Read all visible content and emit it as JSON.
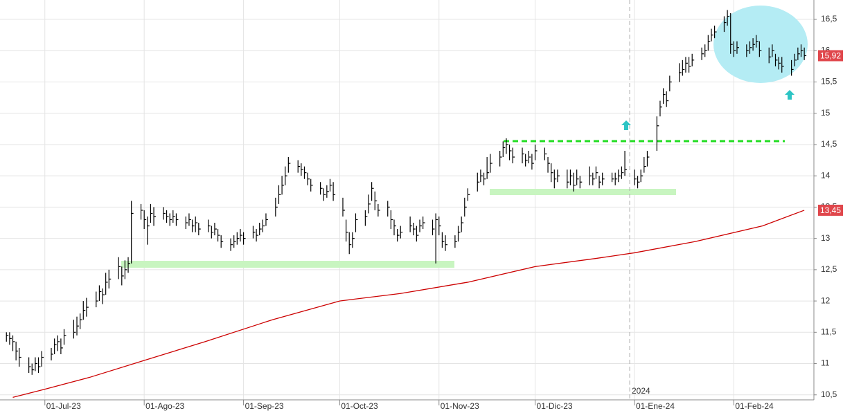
{
  "chart_data": {
    "type": "ohlc",
    "x": [
      "2023-06-19",
      "2023-06-20",
      "2023-06-21",
      "2023-06-22",
      "2023-06-23",
      "2023-06-26",
      "2023-06-27",
      "2023-06-28",
      "2023-06-29",
      "2023-06-30",
      "2023-07-03",
      "2023-07-04",
      "2023-07-05",
      "2023-07-06",
      "2023-07-07",
      "2023-07-10",
      "2023-07-11",
      "2023-07-12",
      "2023-07-13",
      "2023-07-14",
      "2023-07-17",
      "2023-07-18",
      "2023-07-19",
      "2023-07-20",
      "2023-07-21",
      "2023-07-24",
      "2023-07-25",
      "2023-07-26",
      "2023-07-27",
      "2023-07-28",
      "2023-07-31",
      "2023-08-01",
      "2023-08-02",
      "2023-08-03",
      "2023-08-04",
      "2023-08-07",
      "2023-08-08",
      "2023-08-09",
      "2023-08-10",
      "2023-08-11",
      "2023-08-14",
      "2023-08-15",
      "2023-08-16",
      "2023-08-17",
      "2023-08-18",
      "2023-08-21",
      "2023-08-22",
      "2023-08-23",
      "2023-08-24",
      "2023-08-25",
      "2023-08-28",
      "2023-08-29",
      "2023-08-30",
      "2023-08-31",
      "2023-09-01",
      "2023-09-04",
      "2023-09-05",
      "2023-09-06",
      "2023-09-07",
      "2023-09-08",
      "2023-09-11",
      "2023-09-12",
      "2023-09-13",
      "2023-09-14",
      "2023-09-15",
      "2023-09-18",
      "2023-09-19",
      "2023-09-20",
      "2023-09-21",
      "2023-09-22",
      "2023-09-25",
      "2023-09-26",
      "2023-09-27",
      "2023-09-28",
      "2023-09-29",
      "2023-10-02",
      "2023-10-03",
      "2023-10-04",
      "2023-10-05",
      "2023-10-06",
      "2023-10-09",
      "2023-10-10",
      "2023-10-11",
      "2023-10-12",
      "2023-10-13",
      "2023-10-16",
      "2023-10-17",
      "2023-10-18",
      "2023-10-19",
      "2023-10-20",
      "2023-10-23",
      "2023-10-24",
      "2023-10-25",
      "2023-10-26",
      "2023-10-27",
      "2023-10-30",
      "2023-10-31",
      "2023-11-01",
      "2023-11-02",
      "2023-11-03",
      "2023-11-06",
      "2023-11-07",
      "2023-11-08",
      "2023-11-09",
      "2023-11-10",
      "2023-11-13",
      "2023-11-14",
      "2023-11-15",
      "2023-11-16",
      "2023-11-17",
      "2023-11-20",
      "2023-11-21",
      "2023-11-22",
      "2023-11-23",
      "2023-11-24",
      "2023-11-27",
      "2023-11-28",
      "2023-11-29",
      "2023-11-30",
      "2023-12-01",
      "2023-12-04",
      "2023-12-05",
      "2023-12-06",
      "2023-12-07",
      "2023-12-08",
      "2023-12-11",
      "2023-12-12",
      "2023-12-13",
      "2023-12-14",
      "2023-12-15",
      "2023-12-18",
      "2023-12-19",
      "2023-12-20",
      "2023-12-21",
      "2023-12-22",
      "2023-12-25",
      "2023-12-26",
      "2023-12-27",
      "2023-12-28",
      "2023-12-29",
      "2024-01-01",
      "2024-01-02",
      "2024-01-03",
      "2024-01-04",
      "2024-01-05",
      "2024-01-08",
      "2024-01-09",
      "2024-01-10",
      "2024-01-11",
      "2024-01-12",
      "2024-01-15",
      "2024-01-16",
      "2024-01-17",
      "2024-01-18",
      "2024-01-19",
      "2024-01-22",
      "2024-01-23",
      "2024-01-24",
      "2024-01-25",
      "2024-01-26",
      "2024-01-29",
      "2024-01-30",
      "2024-01-31",
      "2024-02-01",
      "2024-02-02",
      "2024-02-05",
      "2024-02-06",
      "2024-02-07",
      "2024-02-08",
      "2024-02-09",
      "2024-02-12",
      "2024-02-13",
      "2024-02-14",
      "2024-02-15",
      "2024-02-16",
      "2024-02-19",
      "2024-02-20",
      "2024-02-21",
      "2024-02-22",
      "2024-02-23"
    ],
    "high": [
      11.5,
      11.5,
      11.45,
      11.35,
      11.25,
      11.1,
      11.0,
      11.1,
      11.1,
      11.2,
      11.25,
      11.4,
      11.45,
      11.4,
      11.55,
      11.7,
      11.75,
      11.8,
      12.0,
      12.05,
      12.15,
      12.25,
      12.2,
      12.45,
      12.5,
      12.7,
      12.55,
      12.65,
      12.7,
      13.6,
      13.55,
      13.45,
      13.35,
      13.55,
      13.5,
      13.5,
      13.45,
      13.4,
      13.45,
      13.4,
      13.35,
      13.4,
      13.3,
      13.35,
      13.25,
      13.3,
      13.2,
      13.25,
      13.15,
      13.05,
      13.0,
      13.05,
      13.1,
      13.15,
      13.1,
      13.2,
      13.15,
      13.25,
      13.3,
      13.4,
      13.65,
      13.85,
      14.0,
      14.15,
      14.3,
      14.25,
      14.2,
      14.15,
      14.05,
      13.95,
      13.9,
      13.8,
      13.85,
      13.95,
      13.9,
      13.65,
      13.3,
      13.1,
      13.1,
      13.4,
      13.45,
      13.7,
      13.9,
      13.75,
      13.55,
      13.6,
      13.45,
      13.3,
      13.15,
      13.2,
      13.35,
      13.25,
      13.2,
      13.3,
      13.35,
      13.3,
      13.4,
      13.35,
      13.1,
      13.05,
      13.05,
      13.2,
      13.35,
      13.65,
      13.8,
      14.05,
      14.1,
      14.05,
      14.3,
      14.35,
      14.4,
      14.55,
      14.6,
      14.5,
      14.45,
      14.45,
      14.35,
      14.4,
      14.35,
      14.5,
      14.45,
      14.3,
      14.2,
      14.1,
      14.1,
      14.1,
      14.1,
      14.05,
      14.1,
      14.0,
      14.15,
      14.05,
      14.15,
      14.0,
      14.05,
      14.05,
      14.05,
      14.1,
      14.15,
      14.4,
      14.1,
      14.0,
      14.1,
      14.3,
      14.4,
      14.95,
      15.2,
      15.4,
      15.35,
      15.6,
      15.8,
      15.85,
      15.9,
      15.9,
      15.95,
      16.05,
      16.1,
      16.25,
      16.35,
      16.4,
      16.55,
      16.65,
      16.6,
      16.15,
      16.15,
      16.1,
      16.15,
      16.2,
      16.25,
      16.15,
      16.05,
      16.1,
      15.95,
      15.9,
      15.9,
      15.85,
      15.95,
      16.05,
      16.1,
      16.05
    ],
    "low": [
      11.35,
      11.3,
      11.2,
      11.05,
      10.95,
      10.85,
      10.82,
      10.88,
      10.85,
      10.95,
      11.05,
      11.15,
      11.2,
      11.15,
      11.3,
      11.4,
      11.45,
      11.55,
      11.7,
      11.75,
      11.9,
      12.0,
      11.95,
      12.1,
      12.2,
      12.35,
      12.25,
      12.35,
      12.45,
      12.6,
      13.3,
      13.15,
      12.9,
      13.25,
      13.2,
      13.3,
      13.25,
      13.2,
      13.25,
      13.2,
      13.15,
      13.2,
      13.1,
      13.1,
      13.05,
      13.1,
      13.0,
      13.05,
      12.95,
      12.85,
      12.8,
      12.85,
      12.9,
      12.95,
      12.9,
      13.0,
      12.95,
      13.05,
      13.1,
      13.2,
      13.35,
      13.55,
      13.7,
      13.85,
      14.05,
      14.05,
      14.0,
      13.95,
      13.85,
      13.75,
      13.7,
      13.6,
      13.65,
      13.75,
      13.6,
      13.35,
      12.95,
      12.75,
      12.85,
      13.1,
      13.2,
      13.4,
      13.6,
      13.45,
      13.35,
      13.35,
      13.15,
      13.05,
      12.95,
      13.0,
      13.1,
      13.05,
      12.95,
      13.1,
      13.15,
      13.05,
      12.6,
      13.05,
      12.85,
      12.8,
      12.85,
      12.95,
      13.1,
      13.35,
      13.6,
      13.75,
      13.9,
      13.85,
      13.95,
      14.05,
      14.15,
      14.3,
      14.35,
      14.25,
      14.2,
      14.2,
      14.15,
      14.2,
      14.1,
      14.25,
      14.25,
      14.05,
      13.9,
      13.8,
      13.9,
      13.8,
      13.85,
      13.75,
      13.85,
      13.8,
      13.85,
      13.85,
      13.95,
      13.8,
      13.85,
      13.9,
      13.85,
      13.9,
      13.95,
      14.0,
      13.85,
      13.8,
      13.9,
      14.05,
      14.15,
      14.4,
      14.95,
      15.15,
      15.1,
      15.35,
      15.5,
      15.6,
      15.65,
      15.65,
      15.75,
      15.85,
      15.9,
      16.0,
      16.15,
      16.2,
      16.3,
      16.4,
      15.95,
      15.9,
      15.95,
      15.9,
      15.95,
      16.0,
      16.05,
      15.9,
      15.8,
      15.9,
      15.75,
      15.7,
      15.65,
      15.6,
      15.75,
      15.85,
      15.9,
      15.85
    ],
    "close": [
      11.45,
      11.4,
      11.35,
      11.2,
      11.1,
      10.95,
      10.9,
      11.0,
      10.95,
      11.1,
      11.15,
      11.3,
      11.35,
      11.25,
      11.45,
      11.5,
      11.6,
      11.7,
      11.85,
      11.9,
      12.0,
      12.15,
      12.1,
      12.3,
      12.35,
      12.55,
      12.4,
      12.5,
      12.6,
      13.4,
      13.45,
      13.3,
      13.2,
      13.4,
      13.35,
      13.4,
      13.35,
      13.3,
      13.35,
      13.3,
      13.25,
      13.3,
      13.2,
      13.25,
      13.15,
      13.2,
      13.1,
      13.15,
      13.05,
      12.95,
      12.9,
      12.95,
      13.0,
      13.05,
      13.0,
      13.1,
      13.05,
      13.15,
      13.2,
      13.3,
      13.5,
      13.7,
      13.85,
      14.0,
      14.2,
      14.15,
      14.1,
      14.05,
      13.95,
      13.85,
      13.8,
      13.7,
      13.75,
      13.85,
      13.7,
      13.45,
      13.1,
      12.9,
      13.0,
      13.3,
      13.35,
      13.55,
      13.8,
      13.6,
      13.45,
      13.5,
      13.3,
      13.2,
      13.05,
      13.1,
      13.2,
      13.15,
      13.05,
      13.2,
      13.25,
      13.15,
      13.3,
      13.2,
      12.95,
      12.9,
      12.95,
      13.1,
      13.25,
      13.5,
      13.7,
      13.9,
      14.0,
      13.95,
      14.05,
      14.2,
      14.3,
      14.45,
      14.5,
      14.4,
      14.3,
      14.35,
      14.25,
      14.3,
      14.2,
      14.4,
      14.35,
      14.2,
      14.05,
      13.95,
      14.0,
      13.9,
      14.0,
      13.85,
      13.95,
      13.9,
      14.0,
      13.95,
      14.05,
      13.9,
      13.95,
      13.95,
      13.95,
      14.0,
      14.05,
      14.1,
      13.95,
      13.9,
      14.0,
      14.15,
      14.3,
      14.8,
      15.1,
      15.3,
      15.2,
      15.5,
      15.65,
      15.7,
      15.8,
      15.75,
      15.85,
      15.95,
      16.0,
      16.15,
      16.25,
      16.3,
      16.45,
      16.55,
      16.1,
      16.0,
      16.05,
      16.0,
      16.05,
      16.1,
      16.15,
      16.0,
      15.9,
      16.0,
      15.85,
      15.8,
      15.75,
      15.7,
      15.85,
      15.95,
      16.0,
      15.92
    ],
    "color": "#000000",
    "ma": {
      "x": [
        "2023-06-21",
        "2023-07-01",
        "2023-07-15",
        "2023-08-01",
        "2023-08-20",
        "2023-09-10",
        "2023-10-01",
        "2023-10-20",
        "2023-11-10",
        "2023-12-01",
        "2023-12-20",
        "2024-01-01",
        "2024-01-20",
        "2024-02-10",
        "2024-02-23"
      ],
      "values": [
        10.46,
        10.59,
        10.78,
        11.05,
        11.35,
        11.7,
        12.0,
        12.12,
        12.3,
        12.55,
        12.68,
        12.77,
        12.95,
        13.2,
        13.45
      ],
      "color": "#cc0000"
    },
    "xlim": [
      "2023-06-17",
      "2024-02-26"
    ],
    "xticks": [
      {
        "value": "2023-07-01",
        "label": "01-Jul-23"
      },
      {
        "value": "2023-08-01",
        "label": "01-Ago-23"
      },
      {
        "value": "2023-09-01",
        "label": "01-Sep-23"
      },
      {
        "value": "2023-10-01",
        "label": "01-Oct-23"
      },
      {
        "value": "2023-11-01",
        "label": "01-Nov-23"
      },
      {
        "value": "2023-12-01",
        "label": "01-Dic-23"
      },
      {
        "value": "2024-01-01",
        "label": "01-Ene-24"
      },
      {
        "value": "2024-02-01",
        "label": "01-Feb-24"
      }
    ],
    "ylim": [
      10.42,
      16.81
    ],
    "yticks": [
      {
        "value": 10.5,
        "label": "10,5"
      },
      11,
      {
        "value": 11.5,
        "label": "11,5"
      },
      12,
      {
        "value": 12.5,
        "label": "12,5"
      },
      13,
      {
        "value": 13.5,
        "label": "13,5"
      },
      14,
      {
        "value": 14.5,
        "label": "14,5"
      },
      15,
      {
        "value": 15.5,
        "label": "15,5"
      },
      16,
      {
        "value": 16.5,
        "label": "16,5"
      }
    ],
    "grid": true,
    "price_tags": [
      {
        "value": 15.92,
        "label": "15,92",
        "color": "#e0474c"
      },
      {
        "value": 13.45,
        "label": "13,45",
        "color": "#e0474c"
      }
    ],
    "year_label": "2024"
  }
}
